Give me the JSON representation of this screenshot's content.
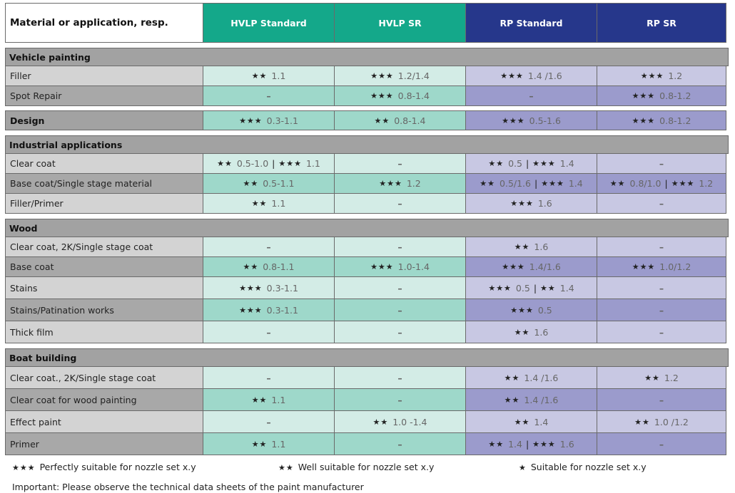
{
  "header": {
    "label": "Material or application, resp.",
    "cols": [
      "HVLP Standard",
      "HVLP SR",
      "RP Standard",
      "RP SR"
    ]
  },
  "sections": [
    {
      "title": "Vehicle painting",
      "rows": [
        {
          "label": "Filler",
          "cells": [
            [
              [
                "★★",
                "1.1"
              ]
            ],
            [
              [
                "★★★",
                "1.2/1.4"
              ]
            ],
            [
              [
                "★★★",
                "1.4 /1.6"
              ]
            ],
            [
              [
                "★★★",
                "1.2"
              ]
            ]
          ]
        },
        {
          "label": "Spot Repair",
          "cells": [
            [
              [
                "",
                "–"
              ]
            ],
            [
              [
                "★★★",
                "0.8-1.4"
              ]
            ],
            [
              [
                "",
                "–"
              ]
            ],
            [
              [
                "★★★",
                "0.8-1.2"
              ]
            ]
          ]
        }
      ]
    },
    {
      "title": "Design",
      "inline": true,
      "cells": [
        [
          [
            "★★★",
            "0.3-1.1"
          ]
        ],
        [
          [
            "★★",
            "0.8-1.4"
          ]
        ],
        [
          [
            "★★★",
            "0.5-1.6"
          ]
        ],
        [
          [
            "★★★",
            "0.8-1.2"
          ]
        ]
      ]
    },
    {
      "title": "Industrial applications",
      "rows": [
        {
          "label": "Clear coat",
          "cells": [
            [
              [
                "★★",
                "0.5-1.0"
              ],
              [
                "★★★",
                "1.1"
              ]
            ],
            [
              [
                "",
                "–"
              ]
            ],
            [
              [
                "★★",
                "0.5"
              ],
              [
                "★★★",
                "1.4"
              ]
            ],
            [
              [
                "",
                "–"
              ]
            ]
          ]
        },
        {
          "label": "Base coat/Single stage material",
          "cells": [
            [
              [
                "★★",
                "0.5-1.1"
              ]
            ],
            [
              [
                "★★★",
                "1.2"
              ]
            ],
            [
              [
                "★★",
                "0.5/1.6"
              ],
              [
                "★★★",
                "1.4"
              ]
            ],
            [
              [
                "★★",
                "0.8/1.0"
              ],
              [
                "★★★",
                "1.2"
              ]
            ]
          ]
        },
        {
          "label": "Filler/Primer",
          "cells": [
            [
              [
                "★★",
                "1.1"
              ]
            ],
            [
              [
                "",
                "–"
              ]
            ],
            [
              [
                "★★★",
                "1.6"
              ]
            ],
            [
              [
                "",
                "–"
              ]
            ]
          ]
        }
      ]
    },
    {
      "title": "Wood",
      "rows": [
        {
          "label": "Clear coat, 2K/Single stage coat",
          "cells": [
            [
              [
                "",
                "–"
              ]
            ],
            [
              [
                "",
                "–"
              ]
            ],
            [
              [
                "★★",
                "1.6"
              ]
            ],
            [
              [
                "",
                "–"
              ]
            ]
          ]
        },
        {
          "label": "Base coat",
          "cells": [
            [
              [
                "★★",
                "0.8-1.1"
              ]
            ],
            [
              [
                "★★★",
                "1.0-1.4"
              ]
            ],
            [
              [
                "★★★",
                "1.4/1.6"
              ]
            ],
            [
              [
                "★★★",
                "1.0/1.2"
              ]
            ]
          ]
        },
        {
          "label": "Stains",
          "cells": [
            [
              [
                "★★★",
                "0.3-1.1"
              ]
            ],
            [
              [
                "",
                "–"
              ]
            ],
            [
              [
                "★★★",
                "0.5"
              ],
              [
                "★★",
                "1.4"
              ]
            ],
            [
              [
                "",
                "–"
              ]
            ]
          ]
        },
        {
          "label": "Stains/Patination works",
          "cells": [
            [
              [
                "★★★",
                "0.3-1.1"
              ]
            ],
            [
              [
                "",
                "–"
              ]
            ],
            [
              [
                "★★★",
                "0.5"
              ]
            ],
            [
              [
                "",
                "–"
              ]
            ]
          ]
        },
        {
          "label": "Thick film",
          "cells": [
            [
              [
                "",
                "–"
              ]
            ],
            [
              [
                "",
                "–"
              ]
            ],
            [
              [
                "★★",
                "1.6"
              ]
            ],
            [
              [
                "",
                "–"
              ]
            ]
          ]
        }
      ]
    },
    {
      "title": "Boat building",
      "rows": [
        {
          "label": "Clear coat., 2K/Single stage coat",
          "cells": [
            [
              [
                "",
                "–"
              ]
            ],
            [
              [
                "",
                "–"
              ]
            ],
            [
              [
                "★★",
                "1.4 /1.6"
              ]
            ],
            [
              [
                "★★",
                "1.2"
              ]
            ]
          ]
        },
        {
          "label": "Clear coat for wood painting",
          "cells": [
            [
              [
                "★★",
                "1.1"
              ]
            ],
            [
              [
                "",
                "–"
              ]
            ],
            [
              [
                "★★",
                "1.4 /1.6"
              ]
            ],
            [
              [
                "",
                "–"
              ]
            ]
          ]
        },
        {
          "label": "Effect paint",
          "cells": [
            [
              [
                "",
                "–"
              ]
            ],
            [
              [
                "★★",
                "1.0 -1.4"
              ]
            ],
            [
              [
                "★★",
                "1.4"
              ]
            ],
            [
              [
                "★★",
                "1.0 /1.2"
              ]
            ]
          ]
        },
        {
          "label": "Primer",
          "cells": [
            [
              [
                "★★",
                "1.1"
              ]
            ],
            [
              [
                "",
                "–"
              ]
            ],
            [
              [
                "★★",
                "1.4"
              ],
              [
                "★★★",
                "1.6"
              ]
            ],
            [
              [
                "",
                "–"
              ]
            ]
          ]
        }
      ]
    }
  ],
  "legend": [
    {
      "stars": "★★★",
      "text": "Perfectly suitable for nozzle set x.y"
    },
    {
      "stars": "★★",
      "text": "Well suitable for nozzle set x.y"
    },
    {
      "stars": "★",
      "text": "Suitable for nozzle set x.y"
    }
  ],
  "note": "Important: Please observe the technical data sheets of the paint manufacturer",
  "colors": {
    "hvlp_header": "#14a88a",
    "rp_header": "#26378b",
    "section_bar": "#a2a2a2"
  }
}
